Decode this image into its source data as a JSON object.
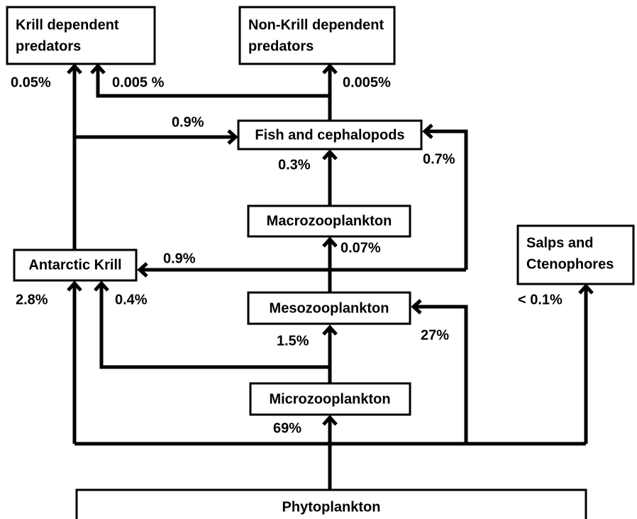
{
  "nodes": [
    {
      "lines": [
        "Krill dependent",
        "predators"
      ]
    },
    {
      "lines": [
        "Non-Krill dependent",
        "predators"
      ]
    },
    {
      "lines": [
        "Fish and cephalopods"
      ]
    },
    {
      "lines": [
        "Macrozooplankton"
      ]
    },
    {
      "lines": [
        "Antarctic Krill"
      ]
    },
    {
      "lines": [
        "Salps and",
        "Ctenophores"
      ]
    },
    {
      "lines": [
        "Mesozooplankton"
      ]
    },
    {
      "lines": [
        "Microzooplankton"
      ]
    },
    {
      "lines": [
        "Phytoplankton"
      ]
    }
  ],
  "edges": [
    {
      "label": "0.05%"
    },
    {
      "label": "0.005 %"
    },
    {
      "label": "0.005%"
    },
    {
      "label": "0.9%"
    },
    {
      "label": "0.3%"
    },
    {
      "label": "0.7%"
    },
    {
      "label": "0.9%"
    },
    {
      "label": "0.07%"
    },
    {
      "label": "2.8%"
    },
    {
      "label": "0.4%"
    },
    {
      "label": "1.5%"
    },
    {
      "label": "27%"
    },
    {
      "label": "< 0.1%"
    },
    {
      "label": "69%"
    }
  ]
}
